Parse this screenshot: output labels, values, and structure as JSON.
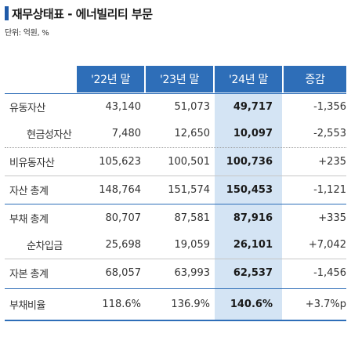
{
  "title": "재무상태표 - 에너빌리티 부문",
  "unit": "단위: 억원, %",
  "columns": [
    "'22년 말",
    "'23년 말",
    "'24년 말",
    "증감"
  ],
  "rows": [
    {
      "label": "유동자산",
      "indent": false,
      "values": [
        "43,140",
        "51,073",
        "49,717",
        "-1,356"
      ]
    },
    {
      "label": "현금성자산",
      "indent": true,
      "values": [
        "7,480",
        "12,650",
        "10,097",
        "-2,553"
      ]
    },
    {
      "label": "비유동자산",
      "indent": false,
      "values": [
        "105,623",
        "100,501",
        "100,736",
        "+235"
      ]
    },
    {
      "label": "자산 총계",
      "indent": false,
      "values": [
        "148,764",
        "151,574",
        "150,453",
        "-1,121"
      ]
    },
    {
      "label": "부채 총계",
      "indent": false,
      "values": [
        "80,707",
        "87,581",
        "87,916",
        "+335"
      ]
    },
    {
      "label": "순차입금",
      "indent": true,
      "values": [
        "25,698",
        "19,059",
        "26,101",
        "+7,042"
      ]
    },
    {
      "label": "자본 총계",
      "indent": false,
      "values": [
        "68,057",
        "63,993",
        "62,537",
        "-1,456"
      ]
    },
    {
      "label": "부채비율",
      "indent": false,
      "values": [
        "118.6%",
        "136.9%",
        "140.6%",
        "+3.7%p"
      ]
    }
  ],
  "colors": {
    "header": "#2e6eb8",
    "highlight": "#d4e4f4",
    "title_bar": "#1f5aa8"
  }
}
